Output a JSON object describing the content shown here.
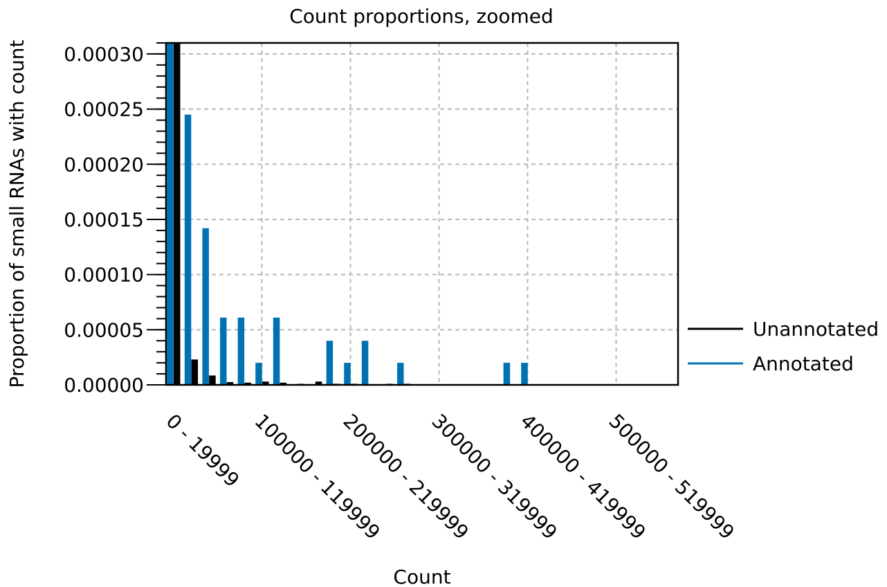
{
  "chart_data": {
    "type": "bar",
    "title": "Count proportions, zoomed",
    "xlabel": "Count",
    "ylabel": "Proportion of small RNAs with count",
    "ylim": [
      0,
      0.00031
    ],
    "yticks": [
      "0.00000",
      "0.00005",
      "0.00010",
      "0.00015",
      "0.00020",
      "0.00025",
      "0.00030"
    ],
    "ytick_values": [
      0,
      5e-05,
      0.0001,
      0.00015,
      0.0002,
      0.00025,
      0.0003
    ],
    "bin_width": 20000,
    "bin_count": 29,
    "xticks": [
      {
        "bin": 0,
        "label": "0 - 19999"
      },
      {
        "bin": 5,
        "label": "100000 - 119999"
      },
      {
        "bin": 10,
        "label": "200000 - 219999"
      },
      {
        "bin": 15,
        "label": "300000 - 319999"
      },
      {
        "bin": 20,
        "label": "400000 - 419999"
      },
      {
        "bin": 25,
        "label": "500000 - 519999"
      }
    ],
    "grid": true,
    "legend_position": "right",
    "series": [
      {
        "name": "Annotated",
        "color": "#0072b2",
        "values": [
          0.00031,
          0.000245,
          0.000142,
          6.1e-05,
          6.1e-05,
          2e-05,
          6.1e-05,
          0,
          0,
          4e-05,
          2e-05,
          4e-05,
          0,
          2e-05,
          0,
          0,
          0,
          0,
          0,
          2e-05,
          2e-05,
          0,
          0,
          0,
          0,
          0,
          0,
          0,
          0
        ]
      },
      {
        "name": "Unannotated",
        "color": "#000000",
        "values": [
          0.00031,
          2.3e-05,
          8.5e-06,
          2.5e-06,
          2e-06,
          3e-06,
          2e-06,
          1e-06,
          3e-06,
          1e-06,
          1e-06,
          0,
          1e-06,
          1e-06,
          0,
          0,
          0,
          0,
          0,
          0,
          0,
          0,
          0,
          0,
          0,
          0,
          0,
          0,
          0
        ]
      }
    ],
    "legend": [
      "Unannotated",
      "Annotated"
    ]
  }
}
